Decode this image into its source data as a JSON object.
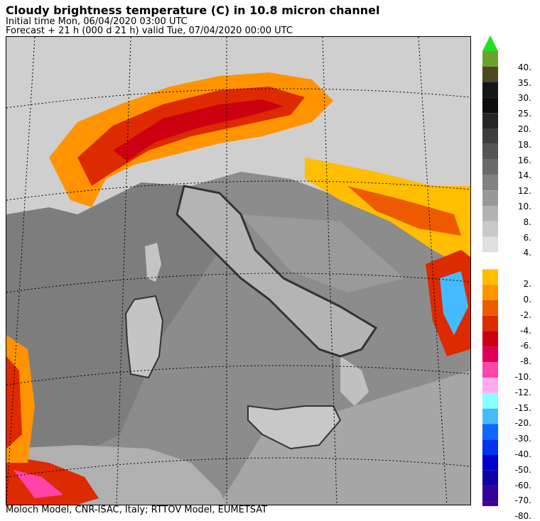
{
  "header": {
    "title": "Cloudy brightness temperature (C) in   10.8 micron channel",
    "initial_time": "Initial time  Mon, 06/04/2020  03:00 UTC",
    "forecast": "Forecast  +  21 h  (000 d 21 h)  valid Tue, 07/04/2020 00:00 UTC"
  },
  "footer": "Moloch Model, CNR-ISAC, Italy; RTTOV Model, EUMETSAT",
  "colorbar": {
    "top_arrow_color": "#22dd22",
    "bottom_arrow_color": "#440099",
    "upper": [
      {
        "label": "40.",
        "color": "#6aa12a"
      },
      {
        "label": "35.",
        "color": "#4f4720"
      },
      {
        "label": "30.",
        "color": "#161616"
      },
      {
        "label": "25.",
        "color": "#0c0c0c"
      },
      {
        "label": "20.",
        "color": "#262626"
      },
      {
        "label": "18.",
        "color": "#3d3d3d"
      },
      {
        "label": "16.",
        "color": "#545454"
      },
      {
        "label": "14.",
        "color": "#6a6a6a"
      },
      {
        "label": "12.",
        "color": "#828282"
      },
      {
        "label": "10.",
        "color": "#999999"
      },
      {
        "label": "8.",
        "color": "#b2b2b2"
      },
      {
        "label": "6.",
        "color": "#c9c9c9"
      },
      {
        "label": "4.",
        "color": "#e0e0e0"
      }
    ],
    "lower": [
      {
        "label": "2.",
        "color": "#ffbe00"
      },
      {
        "label": "0.",
        "color": "#ff9400"
      },
      {
        "label": "-2.",
        "color": "#ee5a00"
      },
      {
        "label": "-4.",
        "color": "#dd2a00"
      },
      {
        "label": "-6.",
        "color": "#cc0010"
      },
      {
        "label": "-8.",
        "color": "#dd0055"
      },
      {
        "label": "-10.",
        "color": "#ff44aa"
      },
      {
        "label": "-12.",
        "color": "#ffaaee"
      },
      {
        "label": "-15.",
        "color": "#88ffff"
      },
      {
        "label": "-20.",
        "color": "#44bbff"
      },
      {
        "label": "-30.",
        "color": "#1166ff"
      },
      {
        "label": "-40.",
        "color": "#0033ee"
      },
      {
        "label": "-50.",
        "color": "#0000cc"
      },
      {
        "label": "-60.",
        "color": "#1100aa"
      },
      {
        "label": "-70.",
        "color": "#330099"
      },
      {
        "label": "-80.",
        "color": "#440099"
      }
    ]
  }
}
